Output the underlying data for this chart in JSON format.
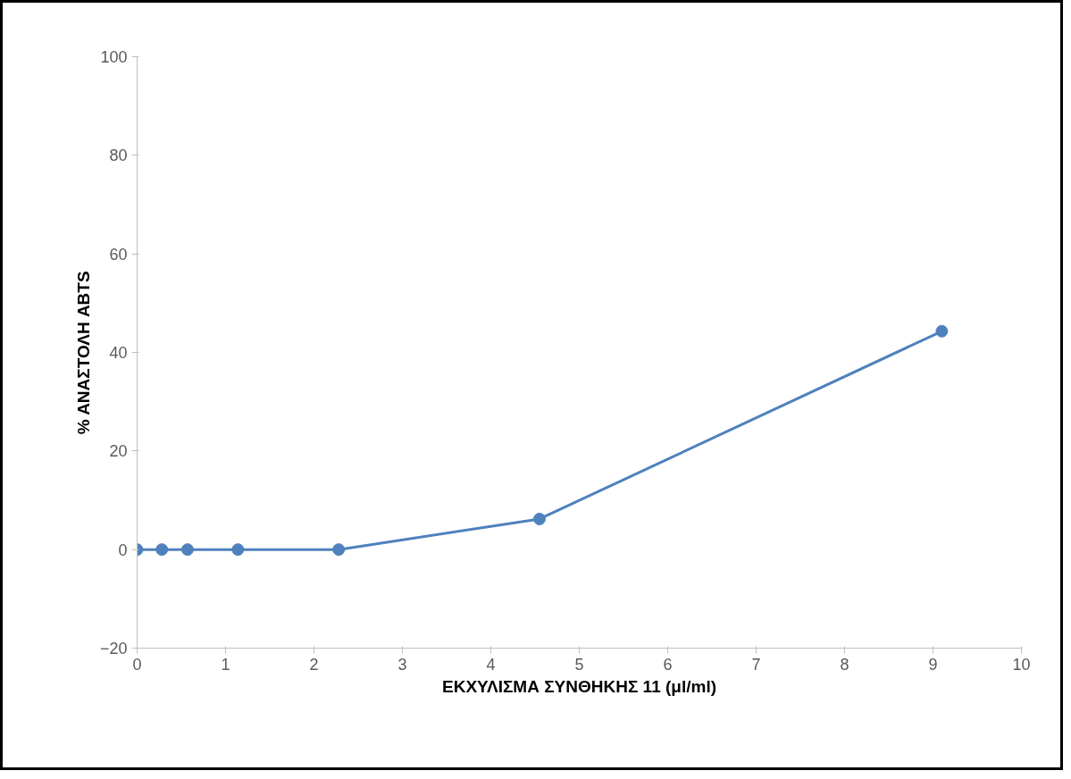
{
  "chart_data": {
    "type": "line",
    "xlabel": "ΕΚΧΥΛΙΣΜΑ ΣΥΝΘΗΚΗΣ 11 (μl/ml)",
    "ylabel": "% ΑΝΑΣΤΟΛΗ ABTS",
    "series": [
      {
        "color": "#4f81bd",
        "x": [
          0,
          0.28,
          0.57,
          1.14,
          2.28,
          4.55,
          9.1
        ],
        "values": [
          0,
          0,
          0,
          0,
          0,
          6.2,
          44.3
        ]
      }
    ],
    "xlim": [
      0,
      10
    ],
    "xticks": [
      0,
      1,
      2,
      3,
      4,
      5,
      6,
      7,
      8,
      9,
      10
    ],
    "ylim": [
      -20,
      100
    ],
    "yticks": [
      -20,
      0,
      20,
      40,
      60,
      80,
      100
    ],
    "marker": "circle",
    "line_style": "solid",
    "grid": false
  }
}
